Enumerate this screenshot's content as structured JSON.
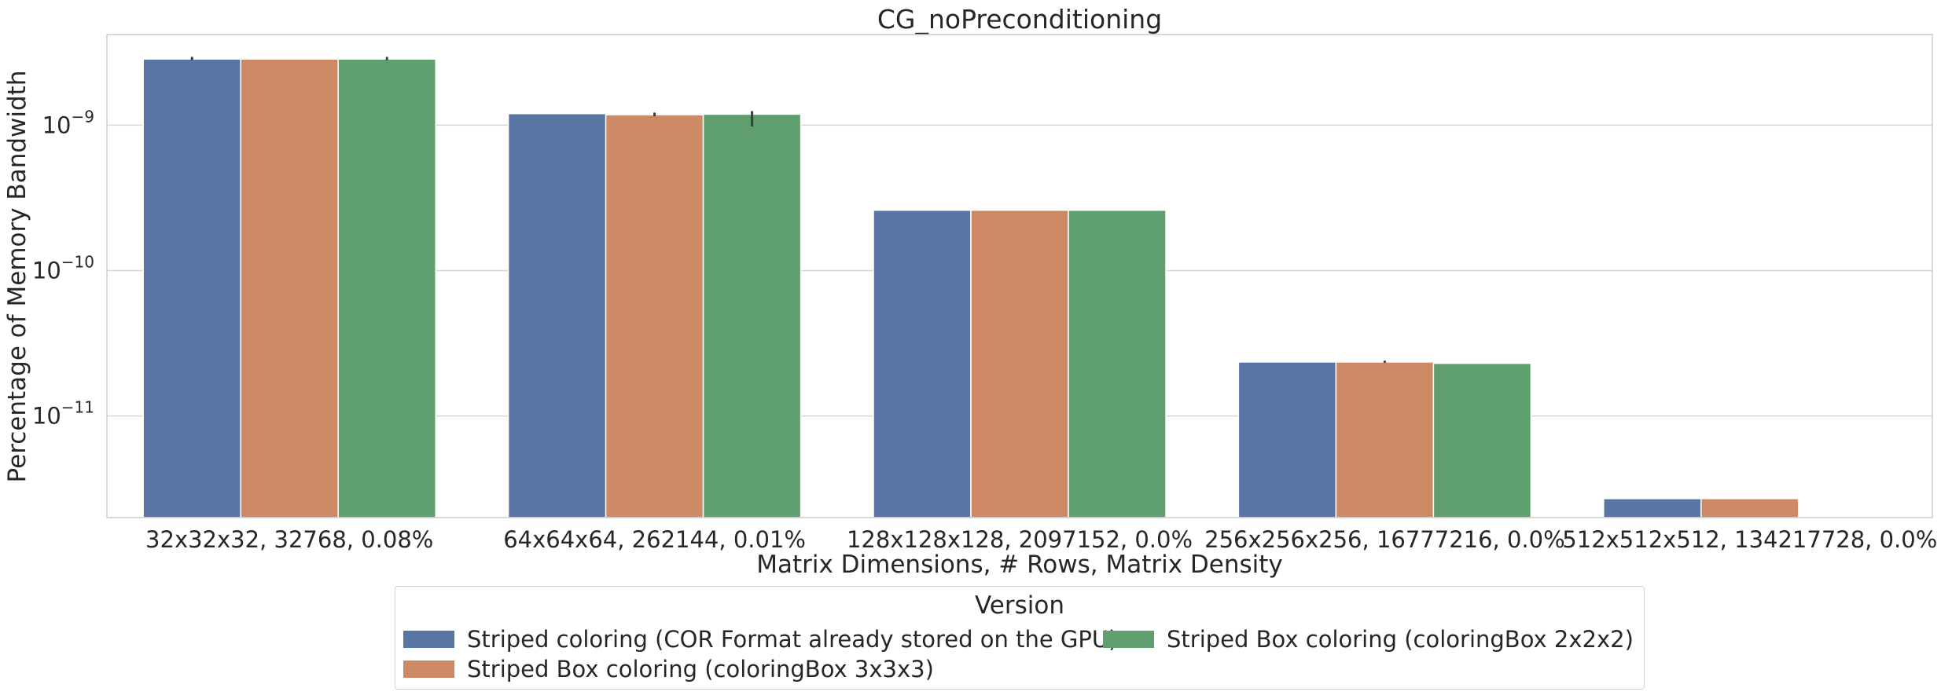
{
  "chart_data": {
    "type": "bar",
    "title": "CG_noPreconditioning",
    "xlabel": "Matrix Dimensions, # Rows, Matrix Density",
    "ylabel": "Percentage of Memory Bandwidth",
    "yscale": "log",
    "ylim": [
      2e-12,
      4.2e-09
    ],
    "yticks": [
      {
        "value": 1e-09,
        "base": "10",
        "exp": "−9"
      },
      {
        "value": 1e-10,
        "base": "10",
        "exp": "−10"
      },
      {
        "value": 1e-11,
        "base": "10",
        "exp": "−11"
      }
    ],
    "grid": "horizontal",
    "categories": [
      "32x32x32, 32768, 0.08%",
      "64x64x64, 262144, 0.01%",
      "128x128x128, 2097152, 0.0%",
      "256x256x256, 16777216, 0.0%",
      "512x512x512, 134217728, 0.0%"
    ],
    "series": [
      {
        "name": "Striped coloring (COR Format already stored on the GPU)",
        "color": "#5875a4",
        "values": [
          2.85e-09,
          1.2e-09,
          2.6e-10,
          2.35e-11,
          2.7e-12
        ],
        "error": [
          [
            2.8e-09,
            2.95e-09
          ],
          null,
          null,
          null,
          null
        ]
      },
      {
        "name": "Striped Box coloring (coloringBox 3x3x3)",
        "color": "#cc8963",
        "values": [
          2.85e-09,
          1.18e-09,
          2.6e-10,
          2.35e-11,
          2.7e-12
        ],
        "error": [
          null,
          [
            1.15e-09,
            1.22e-09
          ],
          null,
          [
            2.32e-11,
            2.4e-11
          ],
          null
        ]
      },
      {
        "name": "Striped Box coloring (coloringBox 2x2x2)",
        "color": "#5f9e6e",
        "values": [
          2.85e-09,
          1.19e-09,
          2.6e-10,
          2.3e-11,
          null
        ],
        "error": [
          [
            2.8e-09,
            2.95e-09
          ],
          [
            9.8e-10,
            1.25e-09
          ],
          null,
          null,
          null
        ]
      }
    ],
    "legend": {
      "title": "Version",
      "placement": "bottom-center",
      "columns": 2
    }
  }
}
